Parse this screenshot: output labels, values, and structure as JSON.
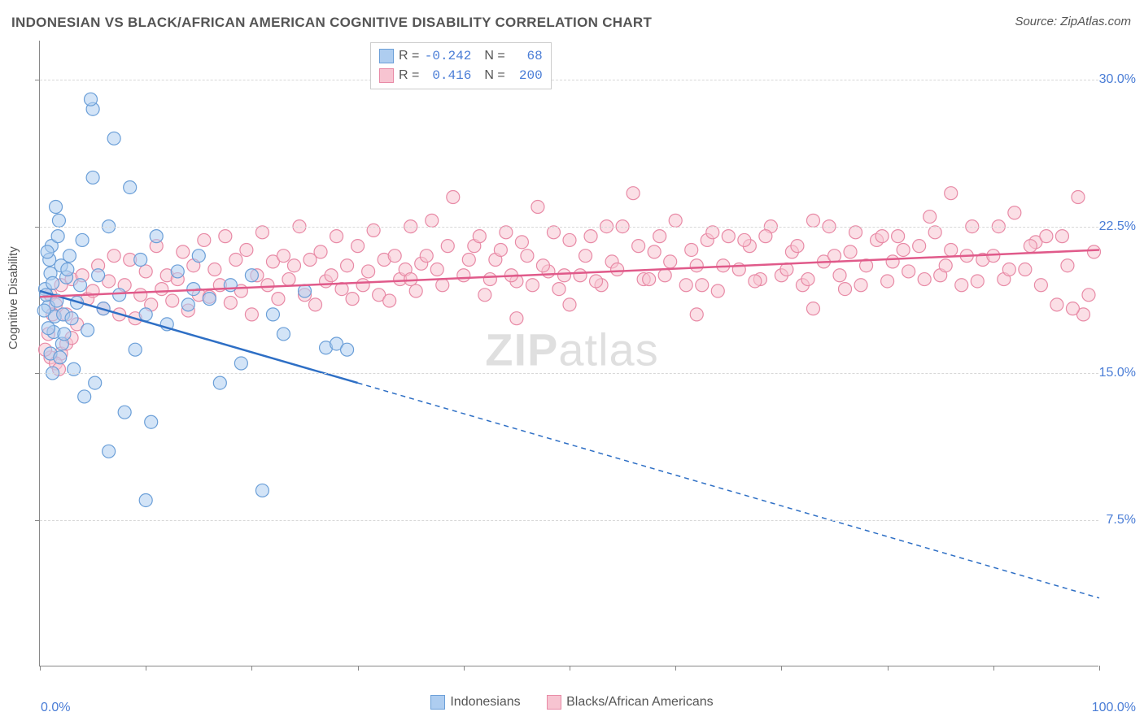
{
  "title": "INDONESIAN VS BLACK/AFRICAN AMERICAN COGNITIVE DISABILITY CORRELATION CHART",
  "source": "Source: ZipAtlas.com",
  "watermark_a": "ZIP",
  "watermark_b": "atlas",
  "ylabel": "Cognitive Disability",
  "chart": {
    "type": "scatter",
    "xlim": [
      0,
      100
    ],
    "ylim": [
      0,
      32
    ],
    "x_ticks_major": [
      0,
      10,
      20,
      30,
      40,
      50,
      60,
      70,
      80,
      90,
      100
    ],
    "y_gridlines": [
      7.5,
      15.0,
      22.5,
      30.0
    ],
    "y_tick_labels": [
      "7.5%",
      "15.0%",
      "22.5%",
      "30.0%"
    ],
    "x_tick_left": "0.0%",
    "x_tick_right": "100.0%",
    "background_color": "#ffffff",
    "grid_color": "#d8d8d8",
    "axis_color": "#888888",
    "marker_radius": 8,
    "marker_stroke_width": 1.2,
    "trend_line_width": 2.5
  },
  "series": [
    {
      "name": "Indonesians",
      "color_fill": "#aecdf0",
      "color_stroke": "#6b9fd8",
      "fill_opacity": 0.55,
      "R": "-0.242",
      "N": "68",
      "trend": {
        "x1": 0,
        "y1": 19.2,
        "x2_solid": 30,
        "y2_solid": 14.5,
        "x2": 100,
        "y2": 3.5,
        "stroke": "#2e6fc5"
      },
      "points": [
        [
          0.5,
          19.3
        ],
        [
          0.8,
          18.4
        ],
        [
          1.0,
          20.1
        ],
        [
          1.2,
          19.6
        ],
        [
          0.6,
          19.0
        ],
        [
          1.4,
          17.9
        ],
        [
          0.9,
          20.8
        ],
        [
          1.1,
          21.5
        ],
        [
          1.6,
          18.7
        ],
        [
          1.3,
          17.1
        ],
        [
          1.7,
          22.0
        ],
        [
          0.7,
          21.2
        ],
        [
          2.0,
          20.5
        ],
        [
          2.2,
          18.0
        ],
        [
          1.8,
          22.8
        ],
        [
          2.5,
          19.9
        ],
        [
          2.1,
          16.5
        ],
        [
          2.8,
          21.0
        ],
        [
          1.5,
          23.5
        ],
        [
          3.0,
          17.8
        ],
        [
          2.6,
          20.3
        ],
        [
          3.2,
          15.2
        ],
        [
          3.5,
          18.6
        ],
        [
          0.4,
          18.2
        ],
        [
          1.0,
          16.0
        ],
        [
          0.8,
          17.3
        ],
        [
          1.9,
          15.8
        ],
        [
          2.3,
          17.0
        ],
        [
          1.2,
          15.0
        ],
        [
          3.8,
          19.5
        ],
        [
          4.0,
          21.8
        ],
        [
          4.5,
          17.2
        ],
        [
          5.0,
          25.0
        ],
        [
          4.2,
          13.8
        ],
        [
          5.5,
          20.0
        ],
        [
          6.0,
          18.3
        ],
        [
          5.2,
          14.5
        ],
        [
          6.5,
          22.5
        ],
        [
          7.0,
          27.0
        ],
        [
          7.5,
          19.0
        ],
        [
          8.0,
          13.0
        ],
        [
          8.5,
          24.5
        ],
        [
          9.0,
          16.2
        ],
        [
          9.5,
          20.8
        ],
        [
          10.0,
          18.0
        ],
        [
          10.5,
          12.5
        ],
        [
          11.0,
          22.0
        ],
        [
          12.0,
          17.5
        ],
        [
          13.0,
          20.2
        ],
        [
          14.0,
          18.5
        ],
        [
          15.0,
          21.0
        ],
        [
          16.0,
          18.8
        ],
        [
          17.0,
          14.5
        ],
        [
          18.0,
          19.5
        ],
        [
          19.0,
          15.5
        ],
        [
          20.0,
          20.0
        ],
        [
          21.0,
          9.0
        ],
        [
          22.0,
          18.0
        ],
        [
          23.0,
          17.0
        ],
        [
          25.0,
          19.2
        ],
        [
          27.0,
          16.3
        ],
        [
          28.0,
          16.5
        ],
        [
          29.0,
          16.2
        ],
        [
          10.0,
          8.5
        ],
        [
          5.0,
          28.5
        ],
        [
          4.8,
          29.0
        ],
        [
          6.5,
          11.0
        ],
        [
          14.5,
          19.3
        ]
      ]
    },
    {
      "name": "Blacks/African Americans",
      "color_fill": "#f7c4d1",
      "color_stroke": "#e88aa6",
      "fill_opacity": 0.55,
      "R": "0.416",
      "N": "200",
      "trend": {
        "x1": 0,
        "y1": 18.9,
        "x2_solid": 100,
        "y2_solid": 21.3,
        "x2": 100,
        "y2": 21.3,
        "stroke": "#e05a8a"
      },
      "points": [
        [
          1.0,
          19.0
        ],
        [
          1.5,
          18.5
        ],
        [
          2.0,
          19.5
        ],
        [
          2.5,
          18.0
        ],
        [
          3.0,
          19.8
        ],
        [
          3.5,
          17.5
        ],
        [
          4.0,
          20.0
        ],
        [
          4.5,
          18.8
        ],
        [
          5.0,
          19.2
        ],
        [
          5.5,
          20.5
        ],
        [
          6.0,
          18.3
        ],
        [
          6.5,
          19.7
        ],
        [
          7.0,
          21.0
        ],
        [
          7.5,
          18.0
        ],
        [
          8.0,
          19.5
        ],
        [
          8.5,
          20.8
        ],
        [
          9.0,
          17.8
        ],
        [
          9.5,
          19.0
        ],
        [
          10.0,
          20.2
        ],
        [
          10.5,
          18.5
        ],
        [
          11.0,
          21.5
        ],
        [
          11.5,
          19.3
        ],
        [
          12.0,
          20.0
        ],
        [
          12.5,
          18.7
        ],
        [
          13.0,
          19.8
        ],
        [
          13.5,
          21.2
        ],
        [
          14.0,
          18.2
        ],
        [
          14.5,
          20.5
        ],
        [
          15.0,
          19.0
        ],
        [
          15.5,
          21.8
        ],
        [
          16.0,
          18.9
        ],
        [
          16.5,
          20.3
        ],
        [
          17.0,
          19.5
        ],
        [
          17.5,
          22.0
        ],
        [
          18.0,
          18.6
        ],
        [
          18.5,
          20.8
        ],
        [
          19.0,
          19.2
        ],
        [
          19.5,
          21.3
        ],
        [
          20.0,
          18.0
        ],
        [
          20.5,
          20.0
        ],
        [
          21.0,
          22.2
        ],
        [
          21.5,
          19.5
        ],
        [
          22.0,
          20.7
        ],
        [
          22.5,
          18.8
        ],
        [
          23.0,
          21.0
        ],
        [
          23.5,
          19.8
        ],
        [
          24.0,
          20.5
        ],
        [
          24.5,
          22.5
        ],
        [
          25.0,
          19.0
        ],
        [
          25.5,
          20.8
        ],
        [
          26.0,
          18.5
        ],
        [
          26.5,
          21.2
        ],
        [
          27.0,
          19.7
        ],
        [
          27.5,
          20.0
        ],
        [
          28.0,
          22.0
        ],
        [
          28.5,
          19.3
        ],
        [
          29.0,
          20.5
        ],
        [
          29.5,
          18.8
        ],
        [
          30.0,
          21.5
        ],
        [
          30.5,
          19.5
        ],
        [
          31.0,
          20.2
        ],
        [
          31.5,
          22.3
        ],
        [
          32.0,
          19.0
        ],
        [
          32.5,
          20.8
        ],
        [
          33.0,
          18.7
        ],
        [
          33.5,
          21.0
        ],
        [
          34.0,
          19.8
        ],
        [
          34.5,
          20.3
        ],
        [
          35.0,
          22.5
        ],
        [
          35.5,
          19.2
        ],
        [
          36.0,
          20.6
        ],
        [
          37.0,
          22.8
        ],
        [
          38.0,
          19.5
        ],
        [
          39.0,
          24.0
        ],
        [
          40.0,
          20.0
        ],
        [
          41.0,
          21.5
        ],
        [
          42.0,
          19.0
        ],
        [
          43.0,
          20.8
        ],
        [
          44.0,
          22.2
        ],
        [
          45.0,
          19.7
        ],
        [
          46.0,
          21.0
        ],
        [
          47.0,
          23.5
        ],
        [
          48.0,
          20.2
        ],
        [
          49.0,
          19.3
        ],
        [
          50.0,
          21.8
        ],
        [
          51.0,
          20.0
        ],
        [
          52.0,
          22.0
        ],
        [
          53.0,
          19.5
        ],
        [
          54.0,
          20.7
        ],
        [
          55.0,
          22.5
        ],
        [
          56.0,
          24.2
        ],
        [
          57.0,
          19.8
        ],
        [
          58.0,
          21.2
        ],
        [
          59.0,
          20.0
        ],
        [
          60.0,
          22.8
        ],
        [
          61.0,
          19.5
        ],
        [
          62.0,
          20.5
        ],
        [
          63.0,
          21.8
        ],
        [
          64.0,
          19.2
        ],
        [
          65.0,
          22.0
        ],
        [
          66.0,
          20.3
        ],
        [
          67.0,
          21.5
        ],
        [
          68.0,
          19.8
        ],
        [
          69.0,
          22.5
        ],
        [
          70.0,
          20.0
        ],
        [
          71.0,
          21.2
        ],
        [
          72.0,
          19.5
        ],
        [
          73.0,
          22.8
        ],
        [
          74.0,
          20.7
        ],
        [
          75.0,
          21.0
        ],
        [
          76.0,
          19.3
        ],
        [
          77.0,
          22.2
        ],
        [
          78.0,
          20.5
        ],
        [
          79.0,
          21.8
        ],
        [
          80.0,
          19.7
        ],
        [
          81.0,
          22.0
        ],
        [
          82.0,
          20.2
        ],
        [
          83.0,
          21.5
        ],
        [
          84.0,
          23.0
        ],
        [
          85.0,
          20.0
        ],
        [
          86.0,
          21.3
        ],
        [
          87.0,
          19.5
        ],
        [
          88.0,
          22.5
        ],
        [
          89.0,
          20.8
        ],
        [
          90.0,
          21.0
        ],
        [
          91.0,
          19.8
        ],
        [
          92.0,
          23.2
        ],
        [
          93.0,
          20.3
        ],
        [
          94.0,
          21.7
        ],
        [
          95.0,
          22.0
        ],
        [
          96.0,
          18.5
        ],
        [
          97.0,
          20.5
        ],
        [
          98.0,
          24.0
        ],
        [
          99.0,
          19.0
        ],
        [
          99.5,
          21.2
        ],
        [
          1.0,
          15.8
        ],
        [
          2.0,
          16.0
        ],
        [
          1.5,
          15.5
        ],
        [
          2.5,
          16.5
        ],
        [
          1.8,
          15.2
        ],
        [
          3.0,
          16.8
        ],
        [
          0.8,
          17.0
        ],
        [
          1.2,
          18.0
        ],
        [
          0.5,
          16.2
        ],
        [
          98.5,
          18.0
        ],
        [
          97.5,
          18.3
        ],
        [
          35.0,
          19.8
        ],
        [
          36.5,
          21.0
        ],
        [
          37.5,
          20.3
        ],
        [
          38.5,
          21.5
        ],
        [
          40.5,
          20.8
        ],
        [
          41.5,
          22.0
        ],
        [
          42.5,
          19.8
        ],
        [
          43.5,
          21.3
        ],
        [
          44.5,
          20.0
        ],
        [
          45.5,
          21.7
        ],
        [
          46.5,
          19.5
        ],
        [
          47.5,
          20.5
        ],
        [
          48.5,
          22.2
        ],
        [
          49.5,
          20.0
        ],
        [
          51.5,
          21.0
        ],
        [
          52.5,
          19.7
        ],
        [
          53.5,
          22.5
        ],
        [
          54.5,
          20.3
        ],
        [
          56.5,
          21.5
        ],
        [
          57.5,
          19.8
        ],
        [
          58.5,
          22.0
        ],
        [
          59.5,
          20.7
        ],
        [
          61.5,
          21.3
        ],
        [
          62.5,
          19.5
        ],
        [
          63.5,
          22.2
        ],
        [
          64.5,
          20.5
        ],
        [
          66.5,
          21.8
        ],
        [
          67.5,
          19.7
        ],
        [
          68.5,
          22.0
        ],
        [
          70.5,
          20.3
        ],
        [
          71.5,
          21.5
        ],
        [
          72.5,
          19.8
        ],
        [
          74.5,
          22.5
        ],
        [
          75.5,
          20.0
        ],
        [
          76.5,
          21.2
        ],
        [
          77.5,
          19.5
        ],
        [
          79.5,
          22.0
        ],
        [
          80.5,
          20.7
        ],
        [
          81.5,
          21.3
        ],
        [
          83.5,
          19.8
        ],
        [
          84.5,
          22.2
        ],
        [
          85.5,
          20.5
        ],
        [
          87.5,
          21.0
        ],
        [
          88.5,
          19.7
        ],
        [
          90.5,
          22.5
        ],
        [
          91.5,
          20.3
        ],
        [
          93.5,
          21.5
        ],
        [
          94.5,
          19.5
        ],
        [
          96.5,
          22.0
        ],
        [
          86.0,
          24.2
        ],
        [
          62.0,
          18.0
        ],
        [
          73.0,
          18.3
        ],
        [
          50.0,
          18.5
        ],
        [
          45.0,
          17.8
        ]
      ]
    }
  ],
  "legend_labels": {
    "r_label": "R =",
    "n_label": "N ="
  },
  "bottom_legend": {
    "series1": "Indonesians",
    "series2": "Blacks/African Americans"
  }
}
